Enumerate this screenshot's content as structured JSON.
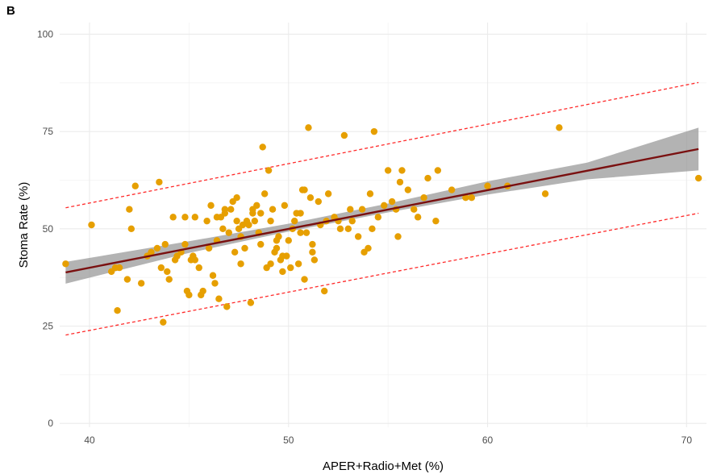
{
  "panel_label": "B",
  "colors": {
    "point": "#E69F00",
    "fit_line": "#7a1010",
    "confidence_band": "#999999",
    "prediction_band": "#ff2a2a",
    "grid": "#ebebeb"
  },
  "chart_data": {
    "type": "scatter",
    "xlabel": "APER+Radio+Met (%)",
    "ylabel": "Stoma Rate  (%)",
    "xlim": [
      38.5,
      71
    ],
    "ylim": [
      -1,
      103
    ],
    "x_ticks": [
      40,
      50,
      60,
      70
    ],
    "y_ticks": [
      0,
      25,
      50,
      75,
      100
    ],
    "grid": true,
    "legend": "none",
    "points": {
      "x": [
        38.8,
        40.1,
        41.1,
        41.3,
        41.4,
        41.5,
        41.9,
        42.0,
        42.1,
        42.3,
        42.6,
        42.9,
        43.1,
        43.4,
        43.5,
        43.6,
        43.7,
        43.8,
        43.9,
        44.0,
        44.2,
        44.4,
        44.6,
        44.8,
        44.8,
        44.9,
        45.0,
        45.1,
        45.2,
        45.3,
        45.5,
        45.6,
        45.7,
        45.9,
        46.0,
        46.1,
        46.2,
        46.3,
        46.4,
        46.5,
        46.7,
        46.8,
        46.9,
        47.0,
        47.1,
        47.2,
        47.3,
        47.4,
        47.5,
        47.6,
        47.7,
        47.8,
        47.9,
        48.0,
        48.1,
        48.2,
        48.3,
        48.5,
        48.6,
        48.7,
        48.8,
        48.9,
        49.0,
        49.1,
        49.2,
        49.3,
        49.4,
        49.5,
        49.6,
        49.7,
        49.8,
        49.9,
        50.0,
        50.1,
        50.2,
        50.3,
        50.5,
        50.6,
        50.7,
        50.8,
        50.9,
        51.0,
        51.1,
        51.2,
        51.3,
        51.5,
        51.6,
        51.8,
        52.0,
        52.3,
        52.5,
        52.8,
        53.0,
        53.2,
        53.5,
        53.8,
        54.0,
        54.2,
        54.3,
        54.5,
        54.8,
        55.0,
        55.2,
        55.4,
        55.5,
        55.7,
        56.0,
        56.3,
        56.5,
        56.8,
        57.0,
        57.4,
        57.5,
        58.2,
        58.9,
        59.2,
        60.0,
        61.0,
        62.9,
        63.6,
        70.6,
        44.3,
        46.4,
        47.6,
        48.6,
        49.4,
        50.4,
        51.9,
        53.1,
        54.1,
        55.6,
        48.2,
        49.7,
        50.6,
        46.8,
        45.3,
        52.6,
        53.7,
        47.4,
        51.2,
        48.4,
        49.1,
        50.8,
        46.6
      ],
      "y": [
        41,
        51,
        39,
        40,
        29,
        40,
        37,
        55,
        50,
        61,
        36,
        43,
        44,
        45,
        62,
        40,
        26,
        46,
        39,
        37,
        53,
        43,
        44,
        46,
        53,
        34,
        33,
        42,
        43,
        53,
        40,
        33,
        34,
        52,
        45,
        56,
        38,
        36,
        47,
        32,
        50,
        55,
        30,
        49,
        55,
        57,
        44,
        52,
        50,
        41,
        51,
        45,
        52,
        51,
        31,
        54,
        52,
        49,
        46,
        71,
        59,
        40,
        65,
        52,
        55,
        44,
        45,
        48,
        42,
        39,
        56,
        43,
        47,
        40,
        50,
        52,
        41,
        54,
        60,
        37,
        49,
        76,
        58,
        44,
        42,
        57,
        51,
        34,
        59,
        53,
        52,
        74,
        50,
        52,
        48,
        44,
        45,
        50,
        75,
        53,
        56,
        65,
        57,
        55,
        48,
        65,
        60,
        55,
        53,
        58,
        63,
        52,
        65,
        60,
        58,
        58,
        61,
        61,
        59,
        76,
        63,
        42,
        53,
        48,
        54,
        47,
        54,
        52,
        55,
        59,
        62,
        55,
        43,
        49,
        54,
        42,
        50,
        55,
        58,
        46,
        56,
        41,
        60,
        53
      ],
      "color": "#E69F00"
    },
    "fit_line": {
      "x": [
        38.8,
        70.6
      ],
      "y": [
        38.8,
        70.5
      ]
    },
    "confidence_band": {
      "x": [
        38.8,
        45,
        50,
        55,
        60,
        65,
        70.6
      ],
      "lower": [
        35.9,
        43.8,
        49.3,
        54.2,
        58.8,
        62.7,
        65.0
      ],
      "upper": [
        41.5,
        46.8,
        51.3,
        56.5,
        62.2,
        67.0,
        76.0
      ]
    },
    "prediction_band": {
      "x": [
        38.8,
        70.6
      ],
      "lower": [
        22.7,
        54.0
      ],
      "upper": [
        55.4,
        87.6
      ]
    }
  }
}
